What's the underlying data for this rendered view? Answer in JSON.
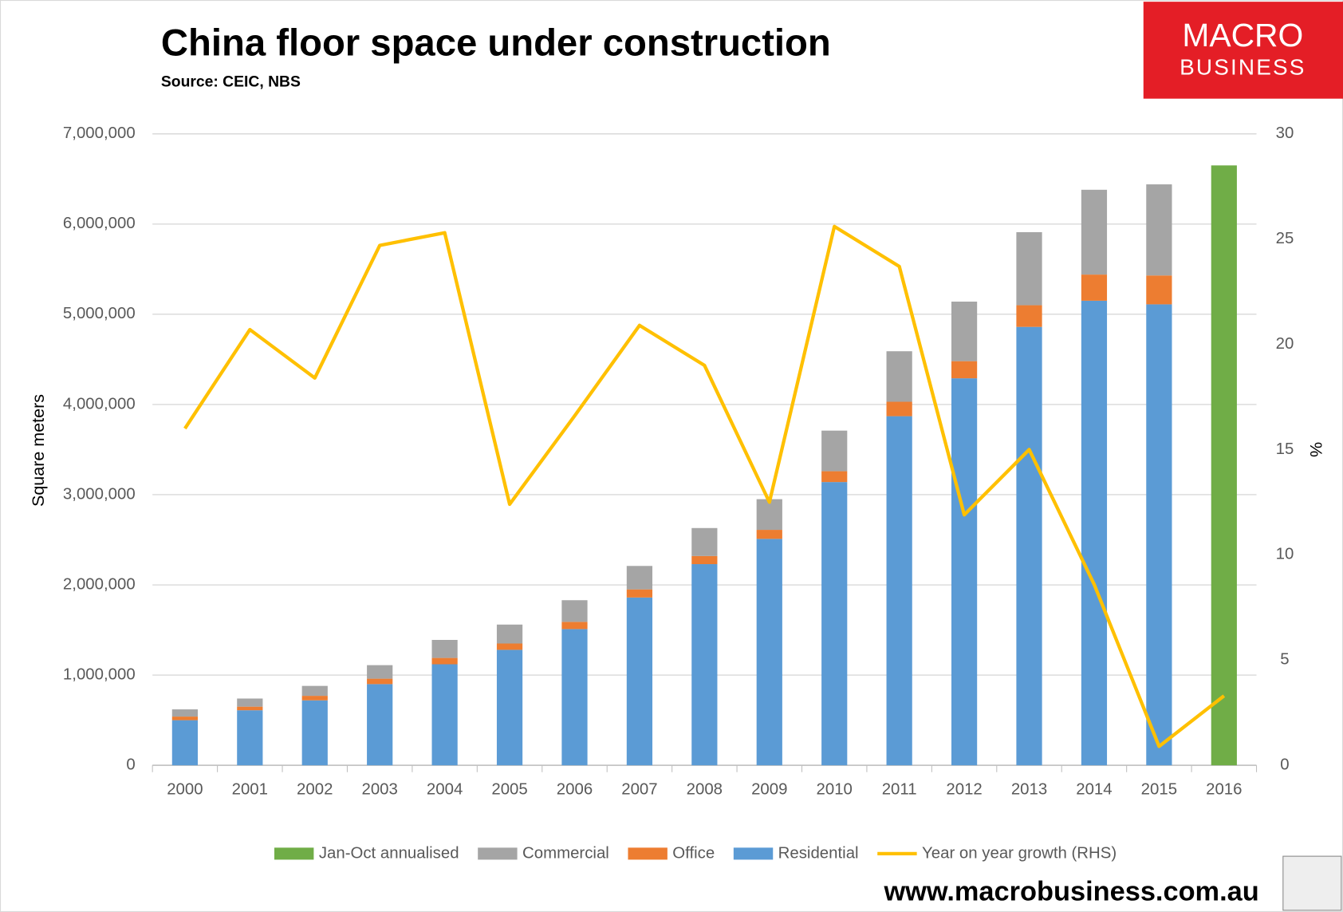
{
  "chart_data": {
    "type": "bar",
    "title": "China floor space under construction",
    "subtitle": "Source: CEIC, NBS",
    "ylabel": "Square meters",
    "y2label": "%",
    "categories": [
      "2000",
      "2001",
      "2002",
      "2003",
      "2004",
      "2005",
      "2006",
      "2007",
      "2008",
      "2009",
      "2010",
      "2011",
      "2012",
      "2013",
      "2014",
      "2015",
      "2016"
    ],
    "series": [
      {
        "name": "Residential",
        "color": "#5b9bd5",
        "values": [
          500000,
          610000,
          720000,
          900000,
          1120000,
          1280000,
          1510000,
          1860000,
          2230000,
          2510000,
          3140000,
          3870000,
          4290000,
          4860000,
          5150000,
          5110000,
          null
        ]
      },
      {
        "name": "Office",
        "color": "#ed7d31",
        "values": [
          40000,
          40000,
          50000,
          60000,
          70000,
          70000,
          80000,
          90000,
          90000,
          100000,
          120000,
          160000,
          190000,
          240000,
          290000,
          320000,
          null
        ]
      },
      {
        "name": "Commercial",
        "color": "#a5a5a5",
        "values": [
          80000,
          90000,
          110000,
          150000,
          200000,
          210000,
          240000,
          260000,
          310000,
          340000,
          450000,
          560000,
          660000,
          810000,
          940000,
          1010000,
          null
        ]
      },
      {
        "name": "Jan-Oct annualised",
        "color": "#70ad47",
        "values": [
          null,
          null,
          null,
          null,
          null,
          null,
          null,
          null,
          null,
          null,
          null,
          null,
          null,
          null,
          null,
          null,
          6650000
        ]
      },
      {
        "name": "Year on year growth (RHS)",
        "color": "#ffc000",
        "type": "line",
        "axis": "y2",
        "values": [
          16.0,
          20.7,
          18.4,
          24.7,
          25.3,
          12.4,
          16.6,
          20.9,
          19.0,
          12.5,
          25.6,
          23.7,
          11.9,
          15.0,
          8.6,
          0.9,
          3.3
        ]
      }
    ],
    "legend_order": [
      3,
      2,
      1,
      0,
      4
    ],
    "ylim": [
      0,
      7000000
    ],
    "yticks": [
      0,
      {
        "value": 1000000,
        "label": "1,000,000"
      },
      {
        "value": 2000000,
        "label": "2,000,000"
      },
      {
        "value": 3000000,
        "label": "3,000,000"
      },
      {
        "value": 4000000,
        "label": "4,000,000"
      },
      {
        "value": 5000000,
        "label": "5,000,000"
      },
      {
        "value": 6000000,
        "label": "6,000,000"
      },
      {
        "value": 7000000,
        "label": "7,000,000"
      }
    ],
    "y2lim": [
      0,
      30
    ],
    "y2ticks": [
      0,
      5,
      10,
      15,
      20,
      25,
      30
    ],
    "grid": true
  },
  "branding": {
    "logo_top": "MACRO",
    "logo_bottom": "BUSINESS",
    "url": "www.macrobusiness.com.au"
  }
}
